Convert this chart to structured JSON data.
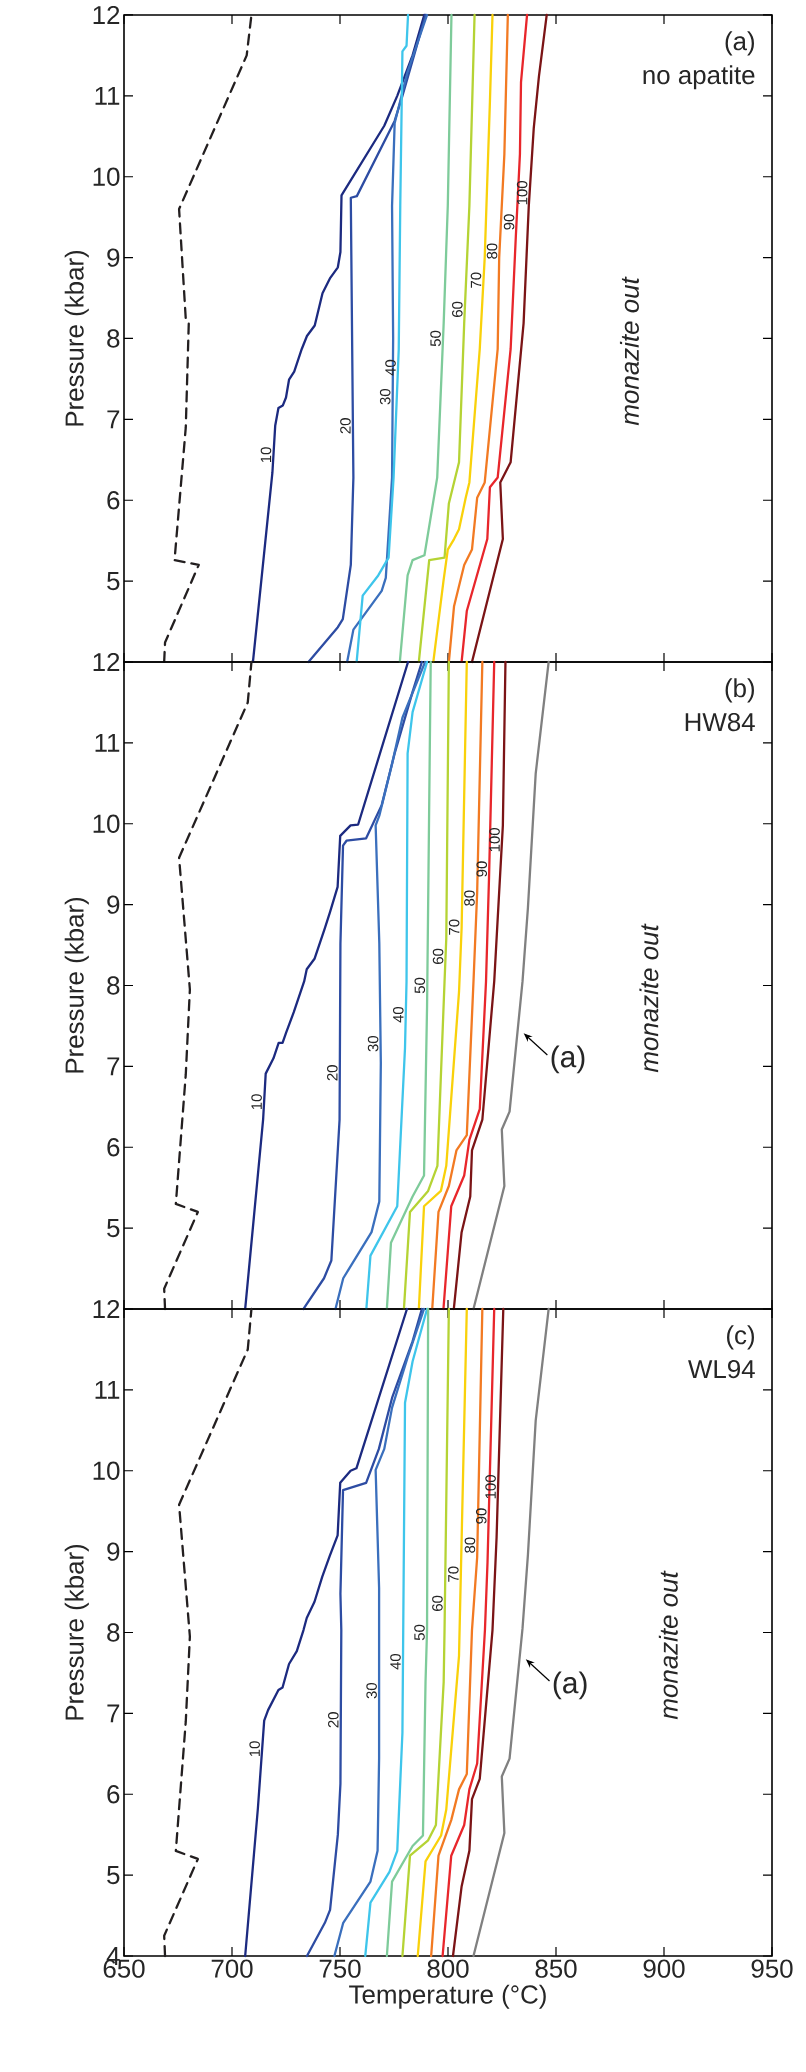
{
  "chart_data": [
    {
      "type": "line",
      "title": "(a)",
      "subtitle": "no apatite",
      "ylabel": "Pressure (kbar)",
      "annotations": [
        "monazite out"
      ],
      "xlim": [
        650,
        950
      ],
      "ylim": [
        4,
        12
      ],
      "xticks": [
        650,
        700,
        750,
        800,
        850,
        900,
        950
      ],
      "yticks": [
        5,
        6,
        7,
        8,
        9,
        10,
        11,
        12
      ],
      "tick_labels": "y",
      "series": [
        {
          "color": "#231f20",
          "line_style": "dashed",
          "x": [
            668.6,
            669,
            684.6,
            673.4,
            678.6,
            680,
            678.6,
            675.5,
            706.8,
            709
          ],
          "values": [
            4.0,
            4.24,
            5.2,
            5.26,
            6.9,
            8.2,
            8.24,
            9.6,
            11.5,
            12
          ]
        },
        {
          "name": "10",
          "color": "#1c2a80",
          "x": [
            709.7,
            718.7,
            720,
            721.5,
            723.5,
            725,
            726.4,
            728.8,
            732.3,
            734.7,
            738.3,
            741.9,
            745.5,
            749,
            750.2,
            750.7,
            751.4,
            770.5,
            776.5,
            783.6,
            789
          ],
          "values": [
            4.0,
            6.34,
            6.92,
            7.14,
            7.17,
            7.27,
            7.49,
            7.59,
            7.87,
            8.03,
            8.16,
            8.56,
            8.75,
            8.88,
            9.07,
            9.77,
            9.8,
            10.63,
            11.0,
            11.5,
            12
          ]
        },
        {
          "name": "20",
          "color": "#2d4ca3",
          "x": [
            735.4,
            749,
            751.3,
            755,
            756.2,
            755,
            757.8,
            775.3,
            778.9,
            784.8,
            789.6
          ],
          "values": [
            4.0,
            4.43,
            4.53,
            5.2,
            6.28,
            9.74,
            9.76,
            10.69,
            11.0,
            11.55,
            12
          ]
        },
        {
          "name": "30",
          "color": "#3a6fbd",
          "x": [
            753.3,
            756.2,
            769.3,
            771.2,
            774.1,
            774.6,
            774.1,
            775.3,
            781.3,
            790.3
          ],
          "values": [
            4.0,
            4.4,
            4.88,
            5.04,
            6.28,
            8.0,
            9.64,
            10.66,
            11.3,
            12
          ]
        },
        {
          "name": "40",
          "color": "#3ec5eb",
          "x": [
            757.7,
            760.5,
            767.7,
            772.5,
            774.8,
            777.2,
            777.9,
            778.9,
            780.8,
            781.5
          ],
          "values": [
            4.0,
            4.82,
            5.07,
            5.29,
            6.28,
            7.87,
            9.64,
            11.55,
            11.62,
            12
          ]
        },
        {
          "name": "50",
          "color": "#7ecb9a",
          "x": [
            777.7,
            781.3,
            783.6,
            789.1,
            795,
            798,
            799.9,
            801.6
          ],
          "values": [
            4.0,
            5.07,
            5.26,
            5.32,
            6.28,
            8.19,
            9.64,
            12
          ]
        },
        {
          "name": "60",
          "color": "#b5d334",
          "x": [
            786.5,
            791.3,
            798.4,
            800.4,
            805.1,
            807.5,
            809.9,
            812.3
          ],
          "values": [
            4.0,
            5.26,
            5.29,
            5.96,
            6.47,
            8.19,
            9.64,
            12
          ]
        },
        {
          "name": "70",
          "color": "#f9d10a",
          "x": [
            793.2,
            797.9,
            799.9,
            802.8,
            805.1,
            808.2,
            809.9,
            814.7,
            817,
            819.4,
            820.6
          ],
          "values": [
            4.0,
            5.0,
            5.39,
            5.52,
            5.64,
            6.03,
            6.22,
            7.87,
            9.0,
            10.92,
            12
          ]
        },
        {
          "name": "80",
          "color": "#f27a22",
          "x": [
            800.4,
            802.8,
            807.5,
            811.1,
            813.5,
            817,
            823,
            823.7,
            826.1,
            827.7
          ],
          "values": [
            4.0,
            4.69,
            5.2,
            5.39,
            6.03,
            6.22,
            7.87,
            9.0,
            10.28,
            12
          ]
        },
        {
          "name": "90",
          "color": "#e8262b",
          "x": [
            806.3,
            808.7,
            818.2,
            819.4,
            823,
            829,
            831.4,
            833.3,
            833.8,
            836.6
          ],
          "values": [
            4.0,
            4.63,
            5.52,
            6.16,
            6.28,
            7.87,
            9.26,
            10.28,
            11.17,
            12
          ]
        },
        {
          "name": "100",
          "color": "#7b1416",
          "x": [
            811.1,
            825.4,
            824.2,
            829,
            835,
            837.4,
            839.7,
            842.1,
            845.7
          ],
          "values": [
            4.0,
            5.52,
            6.22,
            6.47,
            8.19,
            9.64,
            10.6,
            11.24,
            12
          ]
        }
      ]
    },
    {
      "type": "line",
      "title": "(b)",
      "subtitle": "HW84",
      "ylabel": "Pressure (kbar)",
      "annotations": [
        "monazite out",
        {
          "text": "(a)",
          "x": 834,
          "y": 7.44
        }
      ],
      "xlim": [
        650,
        950
      ],
      "ylim": [
        4,
        12
      ],
      "xticks": [
        650,
        700,
        750,
        800,
        850,
        900,
        950
      ],
      "yticks": [
        5,
        6,
        7,
        8,
        9,
        10,
        11,
        12
      ],
      "tick_labels": "y",
      "series": [
        {
          "color": "#231f20",
          "line_style": "dashed",
          "x": [
            669,
            668.6,
            684.2,
            674,
            678.6,
            680.5,
            675.5,
            707.3,
            709
          ],
          "values": [
            4.0,
            4.25,
            5.2,
            5.3,
            6.9,
            7.95,
            9.58,
            11.5,
            12
          ]
        },
        {
          "name": "10",
          "color": "#1c2a80",
          "x": [
            706.1,
            714.4,
            715.6,
            719.2,
            721.6,
            723.4,
            725.1,
            728.6,
            733.4,
            734.6,
            738.2,
            743,
            745.3,
            748.9,
            750.1,
            754.9,
            758.4,
            781.5
          ],
          "values": [
            4.0,
            6.34,
            6.91,
            7.1,
            7.29,
            7.29,
            7.42,
            7.67,
            8.05,
            8.2,
            8.33,
            8.71,
            8.9,
            9.22,
            9.85,
            9.98,
            9.99,
            12
          ]
        },
        {
          "name": "20",
          "color": "#2d4ca3",
          "x": [
            733.1,
            742.6,
            746,
            749.8,
            750.2,
            751.4,
            753,
            762.1,
            769.3,
            775.3,
            783.6,
            787.9
          ],
          "values": [
            4.0,
            4.38,
            4.6,
            6.34,
            8.52,
            9.73,
            9.79,
            9.82,
            10.23,
            10.87,
            11.63,
            12
          ]
        },
        {
          "name": "30",
          "color": "#3a6fbd",
          "x": [
            747.9,
            751.5,
            764.6,
            768.2,
            768.9,
            768.2,
            766.5,
            768.2,
            774.1,
            778.9,
            789.4
          ],
          "values": [
            4.0,
            4.38,
            4.95,
            5.33,
            7.04,
            8.52,
            9.98,
            10.1,
            10.74,
            11.31,
            12
          ]
        },
        {
          "name": "40",
          "color": "#3ec5eb",
          "x": [
            762.2,
            764.1,
            776.5,
            780.1,
            780.8,
            781.3,
            783.6,
            790.3
          ],
          "values": [
            4.0,
            4.66,
            5.27,
            7.23,
            8.05,
            10.87,
            11.38,
            12
          ]
        },
        {
          "name": "50",
          "color": "#7ecb9a",
          "x": [
            771.7,
            773.6,
            783.6,
            788.9,
            790.3,
            792
          ],
          "values": [
            4.0,
            4.82,
            5.39,
            5.65,
            7.73,
            12
          ]
        },
        {
          "name": "60",
          "color": "#b5d334",
          "x": [
            779.6,
            782.4,
            790.8,
            795.1,
            798.4,
            799.2,
            800.4
          ],
          "values": [
            4.0,
            5.2,
            5.46,
            5.77,
            8.05,
            8.58,
            12
          ]
        },
        {
          "name": "70",
          "color": "#f9d10a",
          "x": [
            786.5,
            788.9,
            796.7,
            799.2,
            805.1,
            806.3,
            808.7
          ],
          "values": [
            4.0,
            5.27,
            5.46,
            5.77,
            7.92,
            8.71,
            12
          ]
        },
        {
          "name": "80",
          "color": "#f27a22",
          "x": [
            792.7,
            795.6,
            800.4,
            803.9,
            808.7,
            811.8,
            813.5,
            815.9
          ],
          "values": [
            4.0,
            5.2,
            5.52,
            5.96,
            6.15,
            8.05,
            9.15,
            12
          ]
        },
        {
          "name": "90",
          "color": "#e8262b",
          "x": [
            797.9,
            801.5,
            807.5,
            809.9,
            814.7,
            817.6,
            819,
            821.4
          ],
          "values": [
            4.0,
            5.27,
            5.65,
            6.09,
            6.47,
            8.05,
            9.34,
            12
          ]
        },
        {
          "name": "100",
          "color": "#7b1416",
          "x": [
            802.7,
            806.3,
            810.3,
            811.1,
            815.9,
            821.4,
            825.4,
            826.6
          ],
          "values": [
            4.0,
            4.95,
            5.39,
            5.96,
            6.34,
            8.05,
            9.98,
            12
          ]
        },
        {
          "color": "#808080",
          "x": [
            811.8,
            826.1,
            824.9,
            828.5,
            834.5,
            837,
            840.6,
            846.6
          ],
          "values": [
            4.0,
            5.52,
            6.22,
            6.44,
            8.05,
            8.96,
            10.62,
            12
          ]
        }
      ]
    },
    {
      "type": "line",
      "title": "(c)",
      "subtitle": "WL94",
      "xlabel": "Temperature (°C)",
      "ylabel": "Pressure (kbar)",
      "annotations": [
        "monazite out",
        {
          "text": "(a)",
          "x": 835,
          "y": 7.7
        }
      ],
      "xlim": [
        650,
        950
      ],
      "ylim": [
        4,
        12
      ],
      "xticks": [
        650,
        700,
        750,
        800,
        850,
        900,
        950
      ],
      "yticks": [
        4,
        5,
        6,
        7,
        8,
        9,
        10,
        11,
        12
      ],
      "series": [
        {
          "color": "#231f20",
          "line_style": "dashed",
          "x": [
            669,
            668.6,
            684.2,
            674,
            678.6,
            680.5,
            675.5,
            707.3,
            709
          ],
          "values": [
            4.0,
            4.25,
            5.2,
            5.3,
            6.9,
            7.95,
            9.58,
            11.5,
            12
          ]
        },
        {
          "name": "10",
          "color": "#1c2a80",
          "x": [
            706.1,
            712,
            714.9,
            716.7,
            721.5,
            723.4,
            726.4,
            730,
            733.1,
            734.6,
            738.2,
            741.8,
            745.3,
            748.9,
            750.1,
            754.9,
            757.6,
            781
          ],
          "values": [
            4.0,
            5.83,
            6.91,
            7.04,
            7.29,
            7.32,
            7.61,
            7.77,
            8.03,
            8.18,
            8.38,
            8.69,
            8.95,
            9.2,
            9.85,
            10.0,
            10.03,
            12
          ]
        },
        {
          "name": "20",
          "color": "#2d4ca3",
          "x": [
            734.7,
            743,
            745.4,
            749,
            750.2,
            750.6,
            750.2,
            751.4,
            762.1,
            768,
            774.1,
            783.6,
            787.9
          ],
          "values": [
            4.0,
            4.41,
            4.57,
            5.5,
            6.13,
            8.03,
            8.48,
            9.76,
            9.85,
            10.27,
            10.9,
            11.6,
            12
          ]
        },
        {
          "name": "30",
          "color": "#3a6fbd",
          "x": [
            747.4,
            751.5,
            764.1,
            767.4,
            768.1,
            768.1,
            766.5,
            770.5,
            774.1,
            781.3,
            788.9
          ],
          "values": [
            4.0,
            4.41,
            4.92,
            5.3,
            6.44,
            8.55,
            10.01,
            10.27,
            10.78,
            11.4,
            12
          ]
        },
        {
          "name": "40",
          "color": "#3ec5eb",
          "x": [
            761.7,
            764.1,
            772.9,
            776.5,
            778.9,
            780.1,
            783.6,
            790.3
          ],
          "values": [
            4.0,
            4.66,
            5.04,
            5.3,
            6.76,
            10.84,
            11.35,
            12
          ]
        },
        {
          "name": "50",
          "color": "#7ecb9a",
          "x": [
            771.7,
            774.1,
            783.6,
            788.4,
            789.6,
            790.3,
            790.8
          ],
          "values": [
            4.0,
            4.92,
            5.36,
            5.49,
            7.39,
            8.03,
            12
          ]
        },
        {
          "name": "60",
          "color": "#b5d334",
          "x": [
            778.9,
            782.4,
            790.8,
            794.4,
            798,
            798.4,
            800.4
          ],
          "values": [
            4.0,
            5.24,
            5.43,
            5.62,
            7.39,
            8.03,
            12
          ]
        },
        {
          "name": "70",
          "color": "#f9d10a",
          "x": [
            786,
            789.6,
            796.8,
            799.2,
            805.1,
            808.7
          ],
          "values": [
            4.0,
            5.17,
            5.49,
            5.81,
            7.71,
            12
          ]
        },
        {
          "name": "80",
          "color": "#f27a22",
          "x": [
            792.2,
            795.6,
            801.5,
            805.1,
            808.7,
            811.1,
            813.5,
            815.9
          ],
          "values": [
            4.0,
            5.24,
            5.68,
            6.06,
            6.25,
            8.03,
            8.93,
            12
          ]
        },
        {
          "name": "90",
          "color": "#e8262b",
          "x": [
            797.5,
            801.5,
            807.5,
            809.9,
            813.5,
            817.1,
            818.3,
            821.4
          ],
          "values": [
            4.0,
            5.24,
            5.62,
            6.06,
            6.38,
            8.03,
            8.87,
            12
          ]
        },
        {
          "name": "100",
          "color": "#7b1416",
          "x": [
            802.3,
            806.3,
            809.9,
            811.1,
            814.7,
            820.6,
            822.5,
            825.6
          ],
          "values": [
            4.0,
            4.86,
            5.3,
            5.94,
            6.19,
            8.03,
            9.18,
            12
          ]
        },
        {
          "color": "#808080",
          "x": [
            811.8,
            826.1,
            824.9,
            828.5,
            834.5,
            837,
            840.6,
            846.6
          ],
          "values": [
            4.0,
            5.52,
            6.22,
            6.44,
            8.05,
            8.96,
            10.62,
            12
          ]
        }
      ]
    }
  ]
}
